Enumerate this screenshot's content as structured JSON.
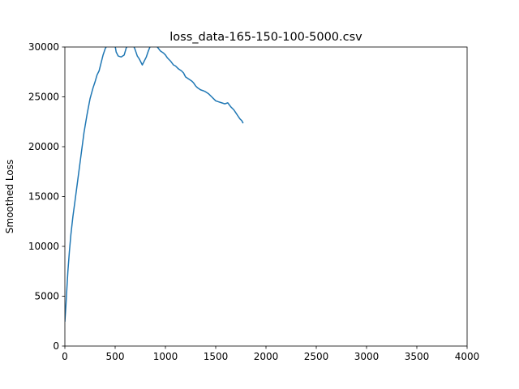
{
  "chart_data": {
    "type": "line",
    "title": "loss_data-165-150-100-5000.csv",
    "xlabel": "",
    "ylabel": "Smoothed Loss",
    "xlim": [
      0,
      4000
    ],
    "ylim": [
      0,
      30000
    ],
    "xticks": [
      "0",
      "500",
      "1000",
      "1500",
      "2000",
      "2500",
      "3000",
      "3500",
      "4000"
    ],
    "yticks": [
      "0",
      "5000",
      "10000",
      "15000",
      "20000",
      "25000",
      "30000"
    ],
    "grid": false,
    "legend": "none",
    "series": [
      {
        "color": "#1f77b4",
        "x": [
          0,
          10,
          20,
          30,
          45,
          60,
          80,
          100,
          130,
          160,
          190,
          220,
          250,
          280,
          300,
          320,
          340,
          360,
          380,
          400,
          420,
          450,
          480,
          500,
          510,
          530,
          560,
          590,
          610,
          630,
          650,
          680,
          700,
          720,
          740,
          770,
          790,
          810,
          830,
          850,
          880,
          900,
          920,
          950,
          980,
          1000,
          1020,
          1050,
          1080,
          1100,
          1130,
          1160,
          1180,
          1200,
          1230,
          1260,
          1280,
          1300,
          1320,
          1350,
          1380,
          1400,
          1430,
          1460,
          1480,
          1500,
          1530,
          1560,
          1590,
          1620,
          1650,
          1680,
          1700,
          1720,
          1740,
          1760,
          1770
        ],
        "y": [
          2500,
          4000,
          5800,
          7500,
          9500,
          11200,
          13000,
          14500,
          16800,
          19100,
          21400,
          23200,
          24800,
          25900,
          26500,
          27200,
          27600,
          28400,
          29200,
          29800,
          30200,
          30500,
          30400,
          30100,
          29500,
          29100,
          29000,
          29200,
          29900,
          30300,
          30400,
          30200,
          29700,
          29100,
          28800,
          28200,
          28600,
          29000,
          29600,
          30100,
          30400,
          30300,
          30000,
          29600,
          29400,
          29200,
          28900,
          28600,
          28200,
          28100,
          27800,
          27600,
          27400,
          27000,
          26800,
          26600,
          26400,
          26100,
          25900,
          25700,
          25600,
          25500,
          25300,
          25000,
          24800,
          24600,
          24500,
          24400,
          24300,
          24400,
          24000,
          23700,
          23400,
          23100,
          22800,
          22600,
          22400
        ]
      }
    ]
  }
}
